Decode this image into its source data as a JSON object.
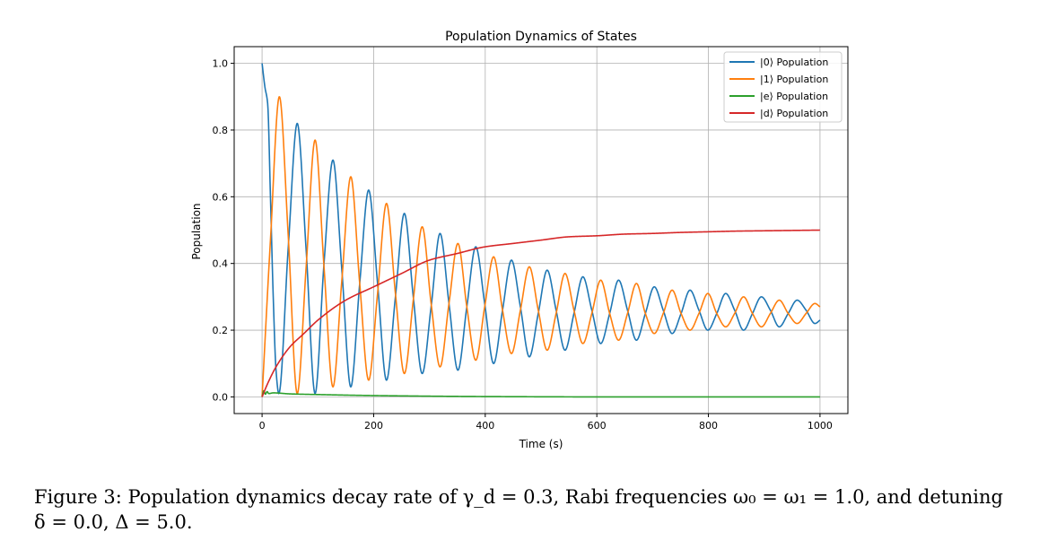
{
  "chart_data": {
    "type": "line",
    "title": "Population Dynamics of States",
    "xlabel": "Time (s)",
    "ylabel": "Population",
    "xlim": [
      -50,
      1050
    ],
    "ylim": [
      -0.05,
      1.05
    ],
    "xticks": [
      "0",
      "200",
      "400",
      "600",
      "800",
      "1000"
    ],
    "yticks": [
      "0.0",
      "0.2",
      "0.4",
      "0.6",
      "0.8",
      "1.0"
    ],
    "grid": true,
    "legend_position": "top-right",
    "series": [
      {
        "name": "|0⟩ Population",
        "color": "#1f77b4",
        "x": [
          0,
          5,
          10,
          15,
          20,
          25,
          30,
          47,
          63,
          79,
          95,
          111,
          127,
          143,
          159,
          175,
          191,
          207,
          223,
          239,
          255,
          271,
          287,
          303,
          319,
          335,
          351,
          367,
          383,
          399,
          415,
          431,
          447,
          463,
          479,
          495,
          511,
          527,
          543,
          559,
          575,
          591,
          607,
          623,
          639,
          655,
          671,
          687,
          703,
          719,
          735,
          751,
          767,
          783,
          799,
          815,
          831,
          847,
          863,
          879,
          895,
          911,
          927,
          943,
          959,
          975,
          991,
          1000
        ],
        "y": [
          1.0,
          0.93,
          0.88,
          0.6,
          0.3,
          0.08,
          0.01,
          0.45,
          0.82,
          0.44,
          0.01,
          0.4,
          0.71,
          0.38,
          0.03,
          0.34,
          0.62,
          0.34,
          0.05,
          0.3,
          0.55,
          0.3,
          0.07,
          0.27,
          0.49,
          0.28,
          0.08,
          0.27,
          0.45,
          0.28,
          0.1,
          0.26,
          0.41,
          0.27,
          0.12,
          0.25,
          0.38,
          0.26,
          0.14,
          0.25,
          0.36,
          0.26,
          0.16,
          0.25,
          0.35,
          0.26,
          0.17,
          0.25,
          0.33,
          0.26,
          0.19,
          0.25,
          0.32,
          0.26,
          0.2,
          0.25,
          0.31,
          0.26,
          0.2,
          0.25,
          0.3,
          0.26,
          0.21,
          0.25,
          0.29,
          0.26,
          0.22,
          0.23
        ]
      },
      {
        "name": "|1⟩ Population",
        "color": "#ff7f0e",
        "x": [
          0,
          15,
          31,
          47,
          63,
          79,
          95,
          111,
          127,
          143,
          159,
          175,
          191,
          207,
          223,
          239,
          255,
          271,
          287,
          303,
          319,
          335,
          351,
          367,
          383,
          399,
          415,
          431,
          447,
          463,
          479,
          495,
          511,
          527,
          543,
          559,
          575,
          591,
          607,
          623,
          639,
          655,
          671,
          687,
          703,
          719,
          735,
          751,
          767,
          783,
          799,
          815,
          831,
          847,
          863,
          879,
          895,
          911,
          927,
          943,
          959,
          975,
          991,
          1000
        ],
        "y": [
          0.0,
          0.47,
          0.9,
          0.48,
          0.01,
          0.39,
          0.77,
          0.39,
          0.03,
          0.35,
          0.66,
          0.34,
          0.05,
          0.31,
          0.58,
          0.31,
          0.07,
          0.29,
          0.51,
          0.28,
          0.09,
          0.28,
          0.46,
          0.27,
          0.11,
          0.27,
          0.42,
          0.26,
          0.13,
          0.26,
          0.39,
          0.26,
          0.14,
          0.25,
          0.37,
          0.26,
          0.16,
          0.25,
          0.35,
          0.25,
          0.17,
          0.25,
          0.34,
          0.25,
          0.19,
          0.25,
          0.32,
          0.25,
          0.2,
          0.25,
          0.31,
          0.25,
          0.21,
          0.25,
          0.3,
          0.25,
          0.21,
          0.25,
          0.29,
          0.25,
          0.22,
          0.25,
          0.28,
          0.27
        ]
      },
      {
        "name": "|e⟩ Population",
        "color": "#2ca02c",
        "x": [
          0,
          3,
          6,
          9,
          12,
          20,
          50,
          100,
          200,
          400,
          600,
          800,
          1000
        ],
        "y": [
          0.0,
          0.018,
          0.008,
          0.016,
          0.01,
          0.012,
          0.009,
          0.007,
          0.004,
          0.001,
          0.0,
          0.0,
          0.0
        ]
      },
      {
        "name": "|d⟩ Population",
        "color": "#d62728",
        "x": [
          0,
          10,
          25,
          50,
          75,
          100,
          150,
          200,
          250,
          300,
          350,
          400,
          450,
          500,
          550,
          600,
          650,
          700,
          750,
          800,
          850,
          900,
          950,
          1000
        ],
        "y": [
          0.0,
          0.04,
          0.09,
          0.15,
          0.19,
          0.23,
          0.29,
          0.33,
          0.37,
          0.41,
          0.43,
          0.45,
          0.46,
          0.47,
          0.48,
          0.483,
          0.488,
          0.49,
          0.493,
          0.495,
          0.497,
          0.498,
          0.499,
          0.5
        ]
      }
    ]
  },
  "caption": {
    "line1": "Figure 3: Population dynamics decay rate of γ_d = 0.3, Rabi frequencies ω₀ = ω₁ = 1.0, and detuning",
    "line2": "δ = 0.0, Δ = 5.0."
  }
}
